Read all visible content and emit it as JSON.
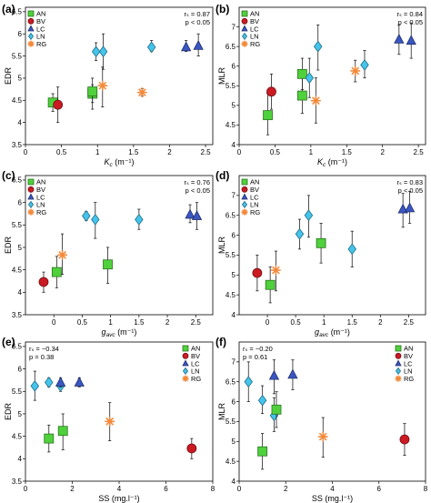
{
  "symbols": {
    "AN": {
      "shape": "square",
      "color": "#4fd13b"
    },
    "BV": {
      "shape": "circle",
      "color": "#cc1a22"
    },
    "LC": {
      "shape": "triangle",
      "color": "#3a56c2"
    },
    "LN": {
      "shape": "diamond",
      "color": "#43c4ec"
    },
    "RG": {
      "shape": "asterisk",
      "color": "#f28a3b"
    }
  },
  "chart_data": [
    {
      "type": "scatter",
      "letter": "(a)",
      "xlabel": "K_c (m⁻¹)",
      "ylabel": "EDR",
      "xlim": [
        0,
        2.6
      ],
      "ylim": [
        3.5,
        6.6
      ],
      "xticks": [
        0,
        0.5,
        1,
        1.5,
        2,
        2.5
      ],
      "yticks": [
        3.5,
        4,
        4.5,
        5,
        5.5,
        6,
        6.5
      ],
      "stats": [
        "rₛ = 0.87",
        "p < 0.05"
      ],
      "legend": [
        "AN",
        "BV",
        "LC",
        "LN",
        "RG"
      ],
      "legend_position": "top-left",
      "points": [
        {
          "s": "AN",
          "x": 0.38,
          "y": 4.45,
          "lo": 4.25,
          "hi": 4.65
        },
        {
          "s": "BV",
          "x": 0.45,
          "y": 4.4,
          "lo": 4.0,
          "hi": 4.8
        },
        {
          "s": "AN",
          "x": 0.93,
          "y": 4.65,
          "lo": 4.45,
          "hi": 4.85
        },
        {
          "s": "AN",
          "x": 0.93,
          "y": 4.7,
          "lo": 4.3,
          "hi": 5.0
        },
        {
          "s": "LN",
          "x": 0.98,
          "y": 5.6,
          "lo": 5.4,
          "hi": 5.8
        },
        {
          "s": "RG",
          "x": 1.07,
          "y": 4.83,
          "lo": 4.35,
          "hi": 5.25
        },
        {
          "s": "LN",
          "x": 1.08,
          "y": 5.6,
          "lo": 5.2,
          "hi": 6.0
        },
        {
          "s": "RG",
          "x": 1.62,
          "y": 4.68,
          "lo": 4.6,
          "hi": 4.76
        },
        {
          "s": "LN",
          "x": 1.75,
          "y": 5.7,
          "lo": 5.6,
          "hi": 5.85
        },
        {
          "s": "LC",
          "x": 2.23,
          "y": 5.7,
          "lo": 5.6,
          "hi": 5.85
        },
        {
          "s": "LC",
          "x": 2.4,
          "y": 5.73,
          "lo": 5.5,
          "hi": 6.0
        }
      ]
    },
    {
      "type": "scatter",
      "letter": "(b)",
      "xlabel": "K_c (m⁻¹)",
      "ylabel": "MLR",
      "xlim": [
        0,
        2.6
      ],
      "ylim": [
        4,
        7.5
      ],
      "xticks": [
        0,
        0.5,
        1,
        1.5,
        2,
        2.5
      ],
      "yticks": [
        4,
        4.5,
        5,
        5.5,
        6,
        6.5,
        7
      ],
      "stats": [
        "rₛ = 0.84",
        "p < 0.05"
      ],
      "legend": [
        "AN",
        "BV",
        "LC",
        "LN",
        "RG"
      ],
      "legend_position": "top-left",
      "points": [
        {
          "s": "AN",
          "x": 0.4,
          "y": 4.75,
          "lo": 4.25,
          "hi": 5.3
        },
        {
          "s": "BV",
          "x": 0.45,
          "y": 5.35,
          "lo": 4.9,
          "hi": 5.8
        },
        {
          "s": "AN",
          "x": 0.88,
          "y": 5.25,
          "lo": 4.8,
          "hi": 5.7
        },
        {
          "s": "AN",
          "x": 0.88,
          "y": 5.8,
          "lo": 5.4,
          "hi": 6.2
        },
        {
          "s": "LN",
          "x": 0.98,
          "y": 5.7,
          "lo": 5.2,
          "hi": 6.2
        },
        {
          "s": "RG",
          "x": 1.07,
          "y": 5.12,
          "lo": 4.55,
          "hi": 5.7
        },
        {
          "s": "LN",
          "x": 1.1,
          "y": 6.5,
          "lo": 5.9,
          "hi": 7.05
        },
        {
          "s": "RG",
          "x": 1.62,
          "y": 5.88,
          "lo": 5.6,
          "hi": 6.15
        },
        {
          "s": "LN",
          "x": 1.75,
          "y": 6.03,
          "lo": 5.7,
          "hi": 6.4
        },
        {
          "s": "LC",
          "x": 2.23,
          "y": 6.68,
          "lo": 6.3,
          "hi": 7.05
        },
        {
          "s": "LC",
          "x": 2.4,
          "y": 6.65,
          "lo": 6.2,
          "hi": 7.1
        }
      ]
    },
    {
      "type": "scatter",
      "letter": "(c)",
      "xlabel": "g_avc (m⁻¹)",
      "ylabel": "EDR",
      "xlim": [
        -0.5,
        2.8
      ],
      "ylim": [
        3.5,
        6.6
      ],
      "xticks": [
        0,
        0.5,
        1,
        1.5,
        2,
        2.5
      ],
      "yticks": [
        3.5,
        4,
        4.5,
        5,
        5.5,
        6,
        6.5
      ],
      "stats": [
        "rₛ = 0.76",
        "p < 0.05"
      ],
      "legend": [
        "AN",
        "BV",
        "LC",
        "LN",
        "RG"
      ],
      "legend_position": "top-left",
      "points": [
        {
          "s": "BV",
          "x": -0.18,
          "y": 4.23,
          "lo": 4.0,
          "hi": 4.45
        },
        {
          "s": "AN",
          "x": 0.05,
          "y": 4.45,
          "lo": 4.1,
          "hi": 4.8
        },
        {
          "s": "RG",
          "x": 0.15,
          "y": 4.83,
          "lo": 4.4,
          "hi": 5.3
        },
        {
          "s": "LN",
          "x": 0.57,
          "y": 5.7,
          "lo": 5.6,
          "hi": 5.8
        },
        {
          "s": "LN",
          "x": 0.73,
          "y": 5.62,
          "lo": 5.2,
          "hi": 6.0
        },
        {
          "s": "AN",
          "x": 0.95,
          "y": 4.62,
          "lo": 4.2,
          "hi": 5.0
        },
        {
          "s": "LN",
          "x": 1.5,
          "y": 5.62,
          "lo": 5.4,
          "hi": 5.85
        },
        {
          "s": "LC",
          "x": 2.4,
          "y": 5.73,
          "lo": 5.55,
          "hi": 5.95
        },
        {
          "s": "LC",
          "x": 2.52,
          "y": 5.7,
          "lo": 5.4,
          "hi": 6.0
        }
      ]
    },
    {
      "type": "scatter",
      "letter": "(d)",
      "xlabel": "g_avc (m⁻¹)",
      "ylabel": "MLR",
      "xlim": [
        -0.5,
        2.8
      ],
      "ylim": [
        4,
        7.5
      ],
      "xticks": [
        0,
        0.5,
        1,
        1.5,
        2,
        2.5
      ],
      "yticks": [
        4,
        4.5,
        5,
        5.5,
        6,
        6.5,
        7
      ],
      "stats": [
        "rₛ = 0.83",
        "p < 0.05"
      ],
      "legend": [
        "AN",
        "BV",
        "LC",
        "LN",
        "RG"
      ],
      "legend_position": "top-left",
      "points": [
        {
          "s": "BV",
          "x": -0.18,
          "y": 5.05,
          "lo": 4.6,
          "hi": 5.5
        },
        {
          "s": "AN",
          "x": 0.05,
          "y": 4.75,
          "lo": 4.3,
          "hi": 5.2
        },
        {
          "s": "RG",
          "x": 0.15,
          "y": 5.12,
          "lo": 4.6,
          "hi": 5.6
        },
        {
          "s": "LN",
          "x": 0.57,
          "y": 6.03,
          "lo": 5.65,
          "hi": 6.4
        },
        {
          "s": "LN",
          "x": 0.73,
          "y": 6.5,
          "lo": 5.95,
          "hi": 7.0
        },
        {
          "s": "AN",
          "x": 0.95,
          "y": 5.8,
          "lo": 5.3,
          "hi": 6.3
        },
        {
          "s": "LN",
          "x": 1.5,
          "y": 5.65,
          "lo": 5.2,
          "hi": 6.1
        },
        {
          "s": "LC",
          "x": 2.4,
          "y": 6.65,
          "lo": 6.2,
          "hi": 7.05
        },
        {
          "s": "LC",
          "x": 2.52,
          "y": 6.68,
          "lo": 6.3,
          "hi": 7.1
        }
      ]
    },
    {
      "type": "scatter",
      "letter": "(e)",
      "xlabel": "SS (mg.l⁻¹)",
      "ylabel": "EDR",
      "xlim": [
        0,
        8
      ],
      "ylim": [
        3.5,
        6.6
      ],
      "xticks": [
        0,
        2,
        4,
        6,
        8
      ],
      "yticks": [
        3.5,
        4,
        4.5,
        5,
        5.5,
        6,
        6.5
      ],
      "stats": [
        "rₛ = −0.34",
        "p = 0.38"
      ],
      "legend": [
        "AN",
        "BV",
        "LC",
        "LN",
        "RG"
      ],
      "legend_position": "top-right",
      "points": [
        {
          "s": "LN",
          "x": 0.4,
          "y": 5.62,
          "lo": 5.3,
          "hi": 5.95
        },
        {
          "s": "LN",
          "x": 1.0,
          "y": 5.7,
          "lo": 5.6,
          "hi": 5.8
        },
        {
          "s": "AN",
          "x": 1.0,
          "y": 4.45,
          "lo": 4.15,
          "hi": 4.75
        },
        {
          "s": "LN",
          "x": 1.5,
          "y": 5.62,
          "lo": 5.5,
          "hi": 5.75
        },
        {
          "s": "LC",
          "x": 1.5,
          "y": 5.7,
          "lo": 5.6,
          "hi": 5.8
        },
        {
          "s": "AN",
          "x": 1.6,
          "y": 4.62,
          "lo": 4.2,
          "hi": 5.0
        },
        {
          "s": "LC",
          "x": 2.3,
          "y": 5.7,
          "lo": 5.6,
          "hi": 5.8
        },
        {
          "s": "RG",
          "x": 3.6,
          "y": 4.83,
          "lo": 4.4,
          "hi": 5.25
        },
        {
          "s": "BV",
          "x": 7.1,
          "y": 4.23,
          "lo": 4.0,
          "hi": 4.45
        }
      ]
    },
    {
      "type": "scatter",
      "letter": "(f)",
      "xlabel": "SS (mg.l⁻¹)",
      "ylabel": "MLR",
      "xlim": [
        0,
        8
      ],
      "ylim": [
        4,
        7.5
      ],
      "xticks": [
        0,
        2,
        4,
        6,
        8
      ],
      "yticks": [
        4,
        4.5,
        5,
        5.5,
        6,
        6.5,
        7
      ],
      "stats": [
        "rₛ = −0.20",
        "p = 0.61"
      ],
      "legend": [
        "AN",
        "BV",
        "LC",
        "LN",
        "RG"
      ],
      "legend_position": "top-right",
      "points": [
        {
          "s": "LN",
          "x": 0.4,
          "y": 6.5,
          "lo": 6.0,
          "hi": 7.0
        },
        {
          "s": "LN",
          "x": 1.0,
          "y": 6.03,
          "lo": 5.7,
          "hi": 6.4
        },
        {
          "s": "AN",
          "x": 1.0,
          "y": 4.75,
          "lo": 4.3,
          "hi": 5.2
        },
        {
          "s": "LN",
          "x": 1.5,
          "y": 5.65,
          "lo": 5.25,
          "hi": 6.1
        },
        {
          "s": "LC",
          "x": 1.5,
          "y": 6.65,
          "lo": 6.2,
          "hi": 7.05
        },
        {
          "s": "AN",
          "x": 1.6,
          "y": 5.8,
          "lo": 5.35,
          "hi": 6.25
        },
        {
          "s": "LC",
          "x": 2.3,
          "y": 6.68,
          "lo": 6.3,
          "hi": 7.05
        },
        {
          "s": "RG",
          "x": 3.6,
          "y": 5.12,
          "lo": 4.6,
          "hi": 5.6
        },
        {
          "s": "BV",
          "x": 7.1,
          "y": 5.05,
          "lo": 4.65,
          "hi": 5.45
        }
      ]
    }
  ]
}
